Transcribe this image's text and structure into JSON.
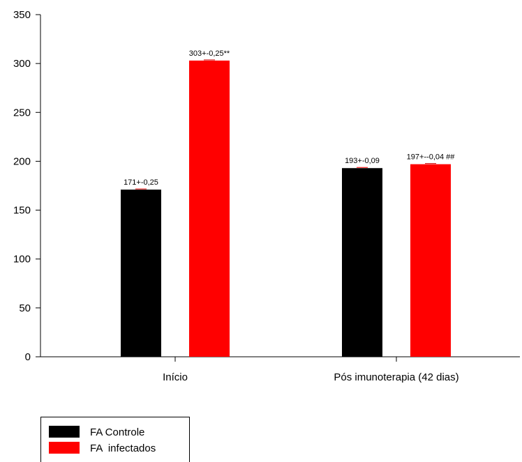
{
  "chart_data": {
    "type": "bar",
    "title": "",
    "xlabel": "",
    "ylabel": "",
    "categories": [
      "Início",
      "Pós imunoterapia (42 dias)"
    ],
    "series": [
      {
        "name": "FA Controle",
        "color": "#000000",
        "values": [
          171,
          193
        ],
        "data_labels": [
          "171+-0,25",
          "193+-0,09"
        ]
      },
      {
        "name": "FA  infectados",
        "color": "#ff0000",
        "values": [
          303,
          197
        ],
        "data_labels": [
          "303+-0,25**",
          "197+--0,04 ##"
        ]
      }
    ],
    "ylim": [
      0,
      350
    ],
    "yticks": [
      0,
      50,
      100,
      150,
      200,
      250,
      300,
      350
    ],
    "grid": false,
    "legend_position": "bottom-left"
  }
}
